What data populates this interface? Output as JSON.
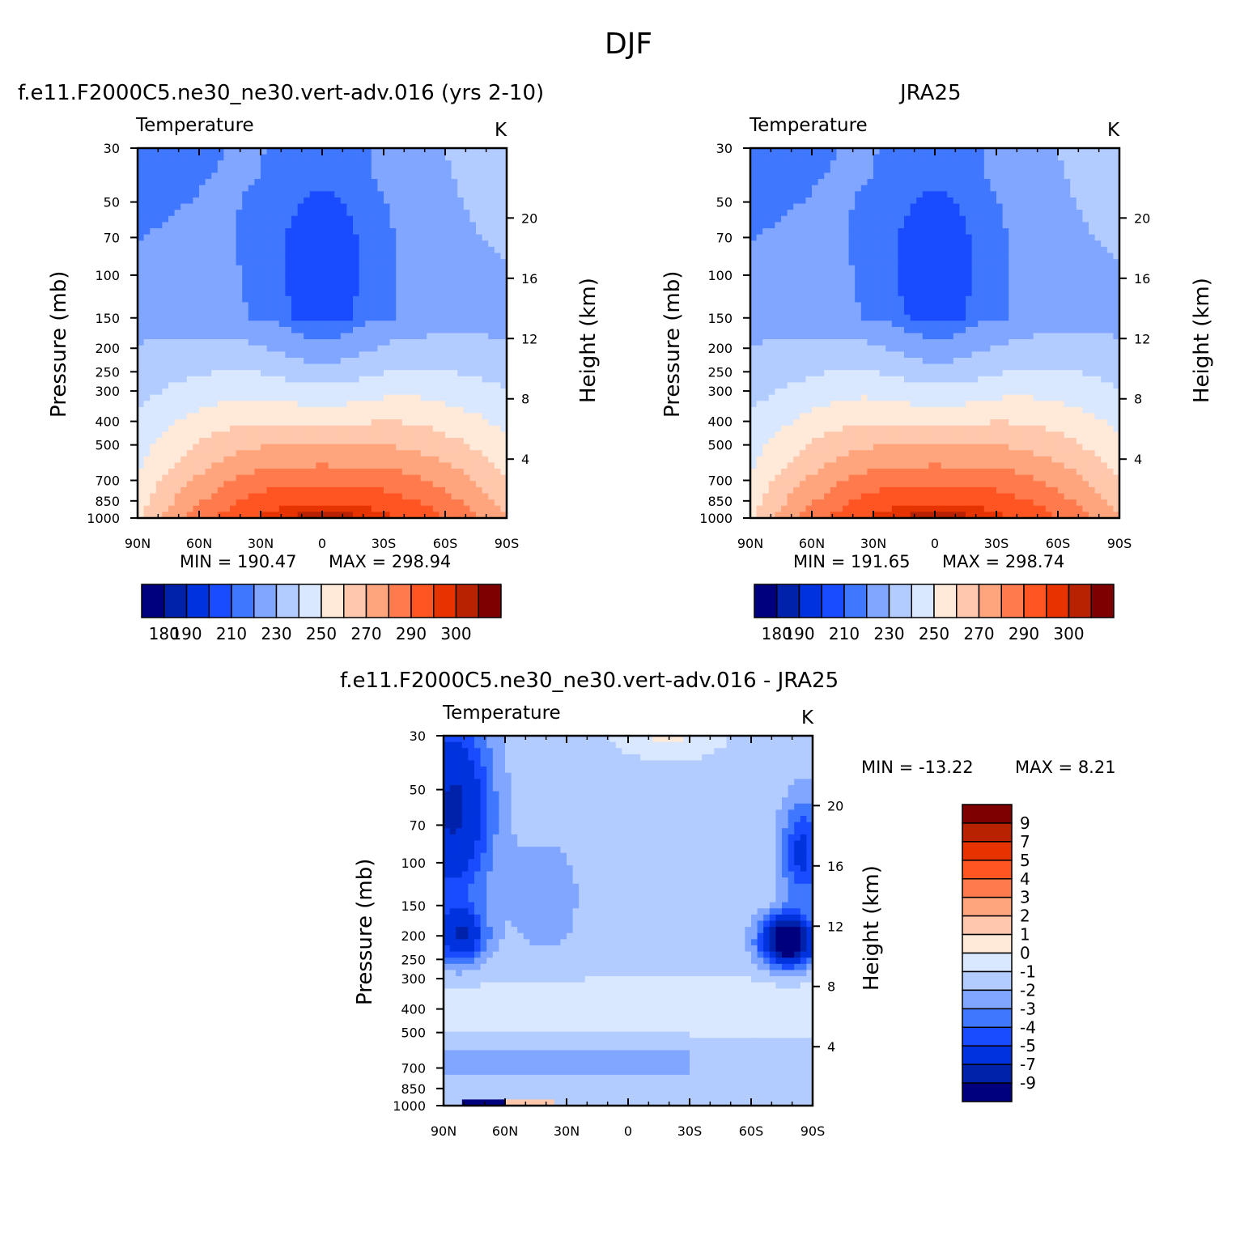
{
  "figure_title": "DJF",
  "colors": {
    "temperature_scale": [
      "#00007f",
      "#0022aa",
      "#0033dd",
      "#1a4cff",
      "#4077ff",
      "#80a6ff",
      "#b3ccff",
      "#d9e8ff",
      "#ffe9d9",
      "#ffc7ab",
      "#ffa57e",
      "#ff7a4d",
      "#ff5522",
      "#e63300",
      "#b82200",
      "#7f0000"
    ],
    "difference_scale": [
      "#7f0000",
      "#b82200",
      "#e63300",
      "#ff5522",
      "#ff7a4d",
      "#ffa57e",
      "#ffc7ab",
      "#ffe9d9",
      "#d9e8ff",
      "#b3ccff",
      "#80a6ff",
      "#4077ff",
      "#1a4cff",
      "#0033dd",
      "#0022aa",
      "#00007f"
    ]
  },
  "chart_data": [
    {
      "type": "heatmap",
      "title": "f.e11.F2000C5.ne30_ne30.vert-adv.016 (yrs 2-10)",
      "variable": "Temperature",
      "units": "K",
      "ylabel": "Pressure (mb)",
      "y2label": "Height (km)",
      "x_ticks": [
        "90N",
        "60N",
        "30N",
        "0",
        "30S",
        "60S",
        "90S"
      ],
      "x_range": [
        90,
        -90
      ],
      "y_ticks": [
        "30",
        "50",
        "70",
        "100",
        "150",
        "200",
        "250",
        "300",
        "400",
        "500",
        "700",
        "850",
        "1000"
      ],
      "y_range": [
        30,
        1000
      ],
      "y_scale": "log",
      "y2_ticks": [
        "20",
        "16",
        "12",
        "8",
        "4"
      ],
      "min_label": "MIN = 190.47",
      "max_label": "MAX = 298.94",
      "colorbar_ticks": [
        "180",
        "190",
        "210",
        "230",
        "250",
        "270",
        "290",
        "300"
      ],
      "colorbar_levels": [
        180,
        185,
        190,
        200,
        210,
        220,
        230,
        240,
        250,
        260,
        270,
        280,
        290,
        295,
        300
      ]
    },
    {
      "type": "heatmap",
      "title": "JRA25",
      "variable": "Temperature",
      "units": "K",
      "ylabel": "Pressure (mb)",
      "y2label": "Height (km)",
      "x_ticks": [
        "90N",
        "60N",
        "30N",
        "0",
        "30S",
        "60S",
        "90S"
      ],
      "x_range": [
        90,
        -90
      ],
      "y_ticks": [
        "30",
        "50",
        "70",
        "100",
        "150",
        "200",
        "250",
        "300",
        "400",
        "500",
        "700",
        "850",
        "1000"
      ],
      "y_range": [
        30,
        1000
      ],
      "y_scale": "log",
      "y2_ticks": [
        "20",
        "16",
        "12",
        "8",
        "4"
      ],
      "min_label": "MIN = 191.65",
      "max_label": "MAX = 298.74",
      "colorbar_ticks": [
        "180",
        "190",
        "210",
        "230",
        "250",
        "270",
        "290",
        "300"
      ],
      "colorbar_levels": [
        180,
        185,
        190,
        200,
        210,
        220,
        230,
        240,
        250,
        260,
        270,
        280,
        290,
        295,
        300
      ]
    },
    {
      "type": "heatmap",
      "title": "f.e11.F2000C5.ne30_ne30.vert-adv.016 - JRA25",
      "variable": "Temperature",
      "units": "K",
      "ylabel": "Pressure (mb)",
      "y2label": "Height (km)",
      "x_ticks": [
        "90N",
        "60N",
        "30N",
        "0",
        "30S",
        "60S",
        "90S"
      ],
      "x_range": [
        90,
        -90
      ],
      "y_ticks": [
        "30",
        "50",
        "70",
        "100",
        "150",
        "200",
        "250",
        "300",
        "400",
        "500",
        "700",
        "850",
        "1000"
      ],
      "y_range": [
        30,
        1000
      ],
      "y_scale": "log",
      "y2_ticks": [
        "20",
        "16",
        "12",
        "8",
        "4"
      ],
      "min_label": "MIN = -13.22",
      "max_label": "MAX = 8.21",
      "colorbar_ticks": [
        "9",
        "7",
        "5",
        "4",
        "3",
        "2",
        "1",
        "0",
        "-1",
        "-2",
        "-3",
        "-4",
        "-5",
        "-7",
        "-9"
      ],
      "colorbar_levels": [
        9,
        7,
        5,
        4,
        3,
        2,
        1,
        0,
        -1,
        -2,
        -3,
        -4,
        -5,
        -7,
        -9
      ]
    }
  ]
}
